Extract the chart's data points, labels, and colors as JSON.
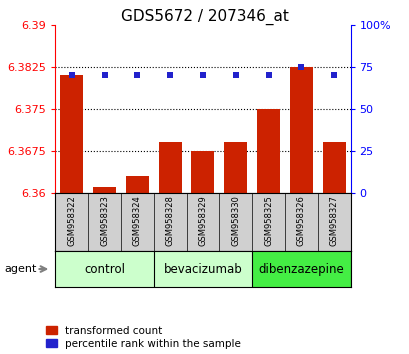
{
  "title": "GDS5672 / 207346_at",
  "samples": [
    "GSM958322",
    "GSM958323",
    "GSM958324",
    "GSM958328",
    "GSM958329",
    "GSM958330",
    "GSM958325",
    "GSM958326",
    "GSM958327"
  ],
  "bar_values": [
    6.381,
    6.361,
    6.363,
    6.369,
    6.3675,
    6.369,
    6.375,
    6.3825,
    6.369
  ],
  "percentile_values": [
    70,
    70,
    70,
    70,
    70,
    70,
    70,
    75,
    70
  ],
  "ylim_left": [
    6.36,
    6.39
  ],
  "ylim_right": [
    0,
    100
  ],
  "yticks_left": [
    6.36,
    6.3675,
    6.375,
    6.3825,
    6.39
  ],
  "yticks_right": [
    0,
    25,
    50,
    75,
    100
  ],
  "ytick_right_labels": [
    "0",
    "25",
    "50",
    "75",
    "100%"
  ],
  "hlines": [
    6.3825,
    6.375,
    6.3675
  ],
  "groups": [
    {
      "label": "control",
      "indices": [
        0,
        1,
        2
      ],
      "color": "#ccffcc"
    },
    {
      "label": "bevacizumab",
      "indices": [
        3,
        4,
        5
      ],
      "color": "#ccffcc"
    },
    {
      "label": "dibenzazepine",
      "indices": [
        6,
        7,
        8
      ],
      "color": "#44ee44"
    }
  ],
  "bar_color": "#cc2200",
  "dot_color": "#2222cc",
  "bar_bottom": 6.36,
  "bar_width": 0.7,
  "title_fontsize": 11,
  "tick_fontsize": 8,
  "sample_fontsize": 6,
  "group_fontsize": 8.5,
  "legend_fontsize": 7.5,
  "agent_fontsize": 8
}
